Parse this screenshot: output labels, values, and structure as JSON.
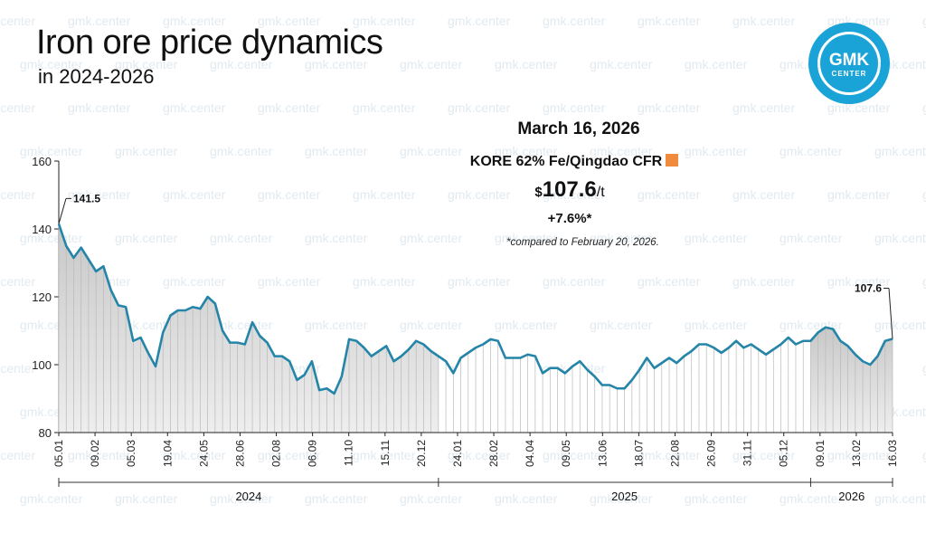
{
  "header": {
    "title": "Iron ore price dynamics",
    "subtitle": "in 2024-2026"
  },
  "logo": {
    "line1": "GMK",
    "line2": "CENTER",
    "color": "#1aa3d6"
  },
  "watermark_text": "gmk.center",
  "info": {
    "date": "March 16, 2026",
    "index": "KORE 62% Fe/Qingdao CFR",
    "index_color": "#f08a3c",
    "price_prefix": "$",
    "price_value": "107.6",
    "price_unit": "/t",
    "change": "+7.6%*",
    "note": "*compared to February 20, 2026."
  },
  "chart_data": {
    "type": "area",
    "ylim": [
      80,
      160
    ],
    "yticks": [
      80,
      100,
      120,
      140,
      160
    ],
    "line_color": "#2585a8",
    "fill_color": "#d9d9d9",
    "x_ticks": [
      "05.01",
      "09.02",
      "05.03",
      "19.04",
      "24.05",
      "28.06",
      "02.08",
      "06.09",
      "11.10",
      "15.11",
      "20.12",
      "24.01",
      "28.02",
      "04.04",
      "09.05",
      "13.06",
      "18.07",
      "22.08",
      "26.09",
      "31.11",
      "05.12",
      "09.01",
      "13.02",
      "16.03"
    ],
    "year_labels": [
      "2024",
      "2025",
      "2026"
    ],
    "annotations": [
      {
        "label": "141.5",
        "value": 141.5
      },
      {
        "label": "107.6",
        "value": 107.6
      }
    ],
    "series": [
      {
        "values": [
          141.5,
          135,
          131.5,
          134.5,
          131,
          127.5,
          129,
          122,
          117.5,
          117,
          107,
          108,
          103.5,
          99.5,
          109.5,
          114.5,
          116,
          116,
          117,
          116.5,
          120,
          118,
          110,
          106.5,
          106.5,
          106,
          112.5,
          108.5,
          106.5,
          102.5,
          102.5,
          101,
          95.5,
          97,
          101,
          92.5,
          93,
          91.5,
          96.5,
          107.5,
          107,
          105,
          102.5,
          104,
          105.5,
          101,
          102.5,
          104.5,
          107,
          106,
          104,
          102.5,
          101,
          97.5,
          102,
          103.5,
          105,
          106,
          107.5,
          107,
          102,
          102,
          102,
          103,
          102.5,
          97.5,
          99,
          99,
          97.5,
          99.5,
          101,
          98.5,
          96.5,
          94,
          94,
          93,
          93,
          95.5,
          98.5,
          102,
          99,
          100.5,
          102,
          100.5,
          102.5,
          104,
          106,
          106,
          105,
          103.5,
          105,
          107,
          105,
          106,
          104.5,
          103,
          104.5,
          106,
          108,
          106,
          107,
          107,
          109.5,
          111,
          110.5,
          107,
          105.5,
          103,
          101,
          100,
          102.5,
          107,
          107.6
        ]
      }
    ]
  }
}
